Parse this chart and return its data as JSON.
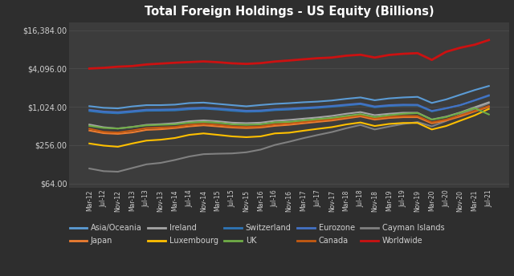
{
  "title": "Total Foreign Holdings - US Equity (Billions)",
  "background_color": "#2e2e2e",
  "plot_bg_color": "#3c3c3c",
  "text_color": "#d0d0d0",
  "grid_color": "#505050",
  "x_labels": [
    "Mar-12",
    "Jul-12",
    "Nov-12",
    "Mar-13",
    "Jul-13",
    "Nov-13",
    "Mar-14",
    "Jul-14",
    "Nov-14",
    "Mar-15",
    "Jul-15",
    "Nov-15",
    "Mar-16",
    "Jul-16",
    "Nov-16",
    "Mar-17",
    "Jul-17",
    "Nov-17",
    "Mar-18",
    "Jul-18",
    "Nov-18",
    "Mar-19",
    "Jul-19",
    "Nov-19",
    "Mar-20",
    "Jul-20",
    "Nov-20",
    "Mar-21",
    "Jul-21"
  ],
  "ytick_labels": [
    "$64.00",
    "$256.00",
    "$1,024.00",
    "$4,096.00",
    "$16,384.00"
  ],
  "ytick_values": [
    64,
    256,
    1024,
    4096,
    16384
  ],
  "ylim": [
    55,
    22000
  ],
  "series": {
    "Worldwide": {
      "color": "#cc1111",
      "data": [
        4096,
        4200,
        4380,
        4480,
        4750,
        4900,
        5050,
        5170,
        5300,
        5150,
        4950,
        4850,
        4980,
        5280,
        5480,
        5720,
        5950,
        6100,
        6520,
        6750,
        6100,
        6700,
        6980,
        7150,
        5600,
        7500,
        8700,
        9700,
        11500
      ]
    },
    "Asia/Oceania": {
      "color": "#5b9bd5",
      "data": [
        1050,
        990,
        970,
        1040,
        1090,
        1090,
        1110,
        1175,
        1195,
        1140,
        1090,
        1045,
        1095,
        1140,
        1170,
        1210,
        1240,
        1290,
        1370,
        1440,
        1300,
        1390,
        1440,
        1470,
        1180,
        1340,
        1590,
        1880,
        2180
      ]
    },
    "Eurozone": {
      "color": "#4472c4",
      "data": [
        920,
        865,
        845,
        880,
        925,
        930,
        940,
        975,
        995,
        965,
        930,
        890,
        900,
        940,
        960,
        990,
        1020,
        1060,
        1110,
        1160,
        1040,
        1090,
        1110,
        1105,
        885,
        975,
        1095,
        1300,
        1560
      ]
    },
    "Switzerland": {
      "color": "#2e75b6",
      "data": [
        880,
        830,
        810,
        848,
        888,
        892,
        900,
        938,
        958,
        928,
        888,
        858,
        868,
        908,
        928,
        958,
        988,
        1028,
        1078,
        1128,
        1008,
        1058,
        1078,
        1078,
        868,
        968,
        1088,
        1288,
        1528
      ]
    },
    "Ireland": {
      "color": "#a5a5a5",
      "data": [
        540,
        490,
        468,
        495,
        535,
        548,
        568,
        608,
        628,
        608,
        578,
        568,
        578,
        618,
        638,
        668,
        698,
        738,
        798,
        848,
        758,
        798,
        828,
        828,
        648,
        718,
        838,
        1008,
        1208
      ]
    },
    "Luxembourg": {
      "color": "#ffc000",
      "data": [
        272,
        252,
        242,
        272,
        302,
        312,
        332,
        372,
        392,
        372,
        352,
        342,
        352,
        392,
        402,
        432,
        462,
        492,
        542,
        582,
        512,
        552,
        572,
        572,
        452,
        512,
        622,
        752,
        952
      ]
    },
    "Canada": {
      "color": "#c55a11",
      "data": [
        465,
        415,
        405,
        435,
        475,
        485,
        495,
        535,
        555,
        535,
        505,
        495,
        505,
        545,
        565,
        595,
        625,
        655,
        705,
        755,
        675,
        715,
        735,
        735,
        585,
        645,
        755,
        885,
        1055
      ]
    },
    "Japan": {
      "color": "#ed7d31",
      "data": [
        435,
        395,
        385,
        405,
        445,
        455,
        475,
        505,
        525,
        505,
        485,
        475,
        485,
        515,
        535,
        565,
        595,
        625,
        675,
        725,
        645,
        685,
        705,
        705,
        565,
        625,
        725,
        865,
        1025
      ]
    },
    "Cayman Islands": {
      "color": "#808080",
      "data": [
        110,
        100,
        98,
        112,
        128,
        135,
        150,
        170,
        185,
        188,
        190,
        198,
        218,
        258,
        290,
        330,
        370,
        412,
        472,
        532,
        452,
        502,
        552,
        592,
        505,
        615,
        775,
        955,
        1165
      ]
    },
    "UK": {
      "color": "#70ad47",
      "data": [
        515,
        478,
        468,
        495,
        525,
        535,
        545,
        578,
        595,
        578,
        545,
        535,
        545,
        585,
        595,
        628,
        658,
        688,
        738,
        788,
        708,
        758,
        798,
        818,
        645,
        708,
        828,
        978,
        778
      ]
    }
  },
  "legend_order": [
    "Asia/Oceania",
    "Japan",
    "Ireland",
    "Luxembourg",
    "Switzerland",
    "UK",
    "Eurozone",
    "Canada",
    "Cayman Islands",
    "Worldwide"
  ],
  "series_order": [
    "Cayman Islands",
    "Luxembourg",
    "Japan",
    "Canada",
    "Ireland",
    "UK",
    "Switzerland",
    "Eurozone",
    "Asia/Oceania",
    "Worldwide"
  ]
}
